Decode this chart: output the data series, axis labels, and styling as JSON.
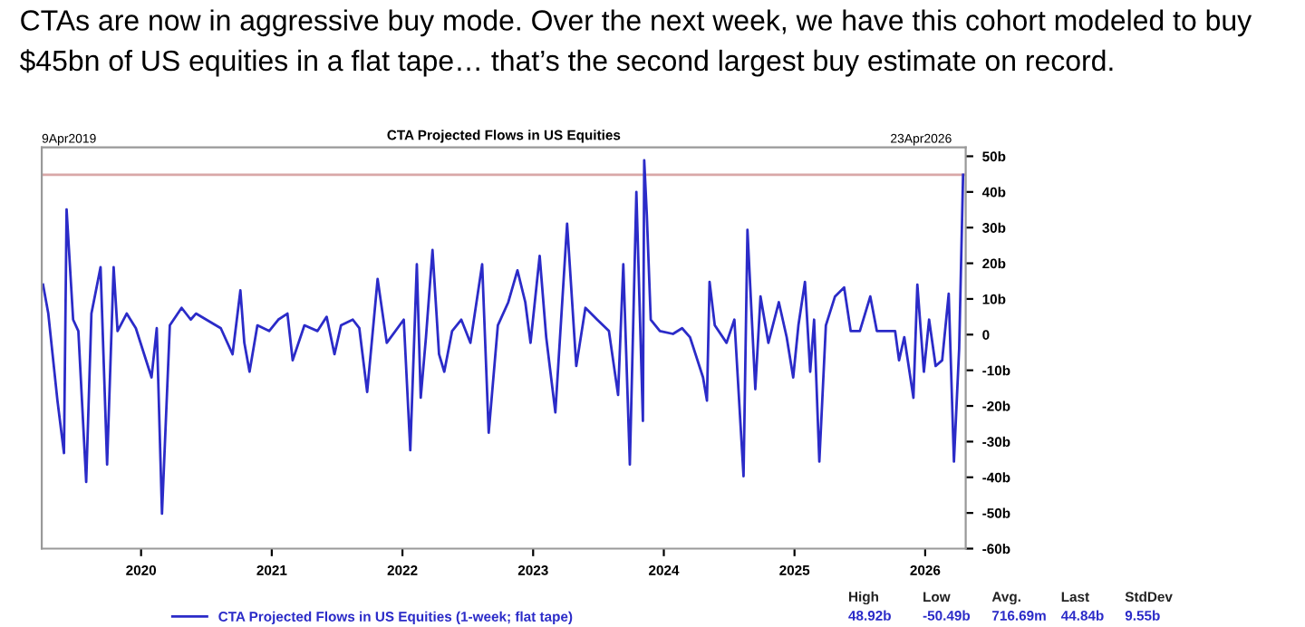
{
  "chart_data": {
    "type": "line",
    "title": "CTAs are now in aggressive buy mode. Over the next week, we have this cohort modeled to buy $45bn of US equities in a flat tape… that’s the second largest buy estimate on record.",
    "subtitle": "CTA Projected Flows in US Equities",
    "x": [
      2019.25,
      2019.29,
      2019.36,
      2019.41,
      2019.43,
      2019.48,
      2019.52,
      2019.58,
      2019.62,
      2019.69,
      2019.74,
      2019.79,
      2019.82,
      2019.89,
      2019.96,
      2020.08,
      2020.12,
      2020.16,
      2020.22,
      2020.31,
      2020.38,
      2020.42,
      2020.61,
      2020.7,
      2020.76,
      2020.79,
      2020.83,
      2020.89,
      2020.98,
      2021.05,
      2021.12,
      2021.16,
      2021.25,
      2021.35,
      2021.42,
      2021.48,
      2021.53,
      2021.62,
      2021.67,
      2021.73,
      2021.81,
      2021.88,
      2022.01,
      2022.06,
      2022.11,
      2022.14,
      2022.18,
      2022.23,
      2022.28,
      2022.32,
      2022.38,
      2022.45,
      2022.52,
      2022.61,
      2022.66,
      2022.73,
      2022.81,
      2022.88,
      2022.94,
      2022.98,
      2023.05,
      2023.1,
      2023.17,
      2023.26,
      2023.33,
      2023.4,
      2023.49,
      2023.58,
      2023.65,
      2023.69,
      2023.74,
      2023.79,
      2023.84,
      2023.85,
      2023.87,
      2023.9,
      2023.97,
      2024.07,
      2024.14,
      2024.2,
      2024.3,
      2024.33,
      2024.35,
      2024.39,
      2024.48,
      2024.54,
      2024.61,
      2024.64,
      2024.7,
      2024.74,
      2024.8,
      2024.88,
      2024.94,
      2024.99,
      2025.03,
      2025.08,
      2025.12,
      2025.15,
      2025.19,
      2025.24,
      2025.31,
      2025.38,
      2025.43,
      2025.5,
      2025.58,
      2025.63,
      2025.77,
      2025.8,
      2025.84,
      2025.91,
      2025.94,
      2025.99,
      2026.03,
      2026.08,
      2026.13,
      2026.18,
      2026.22,
      2026.26,
      2026.29
    ],
    "series": [
      {
        "name": "CTA Projected Flows in US Equities (1-week; flat tape)",
        "color": "#2b2bc8",
        "values": [
          14,
          5.9,
          -18.5,
          -33.2,
          35.1,
          4.2,
          1,
          -41.3,
          5.9,
          18.9,
          -36.4,
          18.9,
          1,
          5.9,
          1.8,
          -12,
          1.8,
          -50.2,
          2.6,
          7.5,
          4.2,
          5.9,
          1.8,
          -5.5,
          12.4,
          -2.3,
          -10.4,
          2.6,
          1,
          4.2,
          5.9,
          -7.2,
          2.6,
          1,
          5,
          -5.5,
          2.6,
          4.2,
          1.8,
          -16.1,
          15.6,
          -2.3,
          4.2,
          -32.4,
          19.7,
          -17.7,
          -0.7,
          23.7,
          -5.5,
          -10.4,
          1,
          4.2,
          -2.3,
          19.7,
          -27.5,
          2.6,
          9.1,
          18,
          9.1,
          -2.3,
          22.1,
          -0.7,
          -21.8,
          31.1,
          -8.8,
          7.5,
          4.2,
          1,
          -16.9,
          19.7,
          -36.4,
          40,
          -24.2,
          48.9,
          33.5,
          4.2,
          1,
          0.2,
          1.8,
          -0.7,
          -12,
          -18.5,
          14.8,
          2.6,
          -2.3,
          4.2,
          -39.7,
          29.4,
          -15.3,
          10.7,
          -2.3,
          9.1,
          -0.7,
          -12,
          2.6,
          14.8,
          -10.4,
          4.2,
          -35.6,
          2.6,
          10.7,
          13.2,
          1,
          1,
          10.7,
          1,
          1,
          -7.2,
          -0.7,
          -17.7,
          14,
          -10.4,
          4.2,
          -8.8,
          -7.2,
          11.5,
          -35.6,
          -3.9,
          44.8
        ]
      }
    ],
    "xlim": [
      2019.24,
      2026.31
    ],
    "xticks": [
      2020,
      2021,
      2022,
      2023,
      2024,
      2025,
      2026
    ],
    "ylim": [
      -60,
      52.5
    ],
    "yticks": [
      {
        "value": 50,
        "label": "50b"
      },
      {
        "value": 40,
        "label": "40b"
      },
      {
        "value": 30,
        "label": "30b"
      },
      {
        "value": 20,
        "label": "20b"
      },
      {
        "value": 10,
        "label": "10b"
      },
      0,
      {
        "value": -10,
        "label": "-10b"
      },
      {
        "value": -20,
        "label": "-20b"
      },
      {
        "value": -30,
        "label": "-30b"
      },
      {
        "value": -40,
        "label": "-40b"
      },
      {
        "value": -50,
        "label": "-50b"
      },
      {
        "value": -60,
        "label": "-60b"
      }
    ],
    "ref_lines": [
      {
        "axis": "y",
        "value": 44.84,
        "color": "#d9a8a8"
      }
    ],
    "annotations": [
      "9Apr2019",
      "23Apr2026",
      "High",
      "Low",
      "Avg.",
      "Last",
      "StdDev",
      "48.92b",
      "-50.49b",
      "716.69m",
      "44.84b",
      "9.55b"
    ],
    "legend": "bottom",
    "grid": false,
    "marker": "none",
    "line_style": "solid"
  }
}
